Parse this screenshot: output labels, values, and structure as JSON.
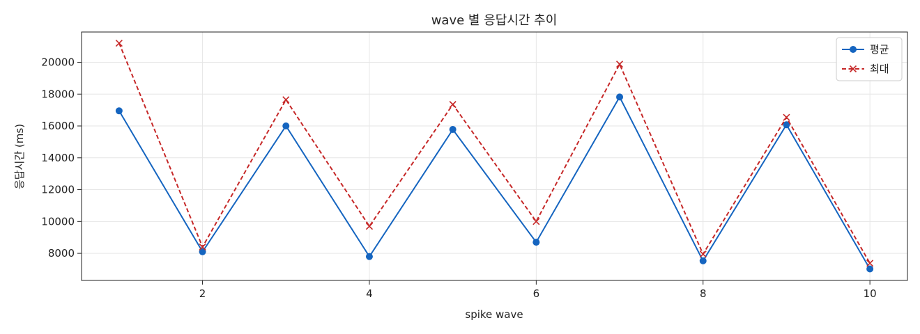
{
  "chart_data": {
    "type": "line",
    "title": "wave 별 응답시간 추이",
    "xlabel": "spike wave",
    "ylabel": "응답시간 (ms)",
    "x": [
      1,
      2,
      3,
      4,
      5,
      6,
      7,
      8,
      9,
      10
    ],
    "xlim": [
      0.55,
      10.45
    ],
    "ylim": [
      6300,
      21900
    ],
    "xticks": [
      2,
      4,
      6,
      8,
      10
    ],
    "yticks": [
      8000,
      10000,
      12000,
      14000,
      16000,
      18000,
      20000
    ],
    "grid": true,
    "legend_position": "top-right",
    "series": [
      {
        "name": "평균",
        "values": [
          16950,
          8100,
          16000,
          7800,
          15780,
          8700,
          17820,
          7530,
          16080,
          7020
        ],
        "color": "#1565c0",
        "line_style": "solid",
        "marker": "circle"
      },
      {
        "name": "최대",
        "values": [
          21200,
          8400,
          17650,
          9700,
          17350,
          10000,
          19880,
          7950,
          16540,
          7380
        ],
        "color": "#c62828",
        "line_style": "dashed",
        "marker": "x"
      }
    ]
  }
}
